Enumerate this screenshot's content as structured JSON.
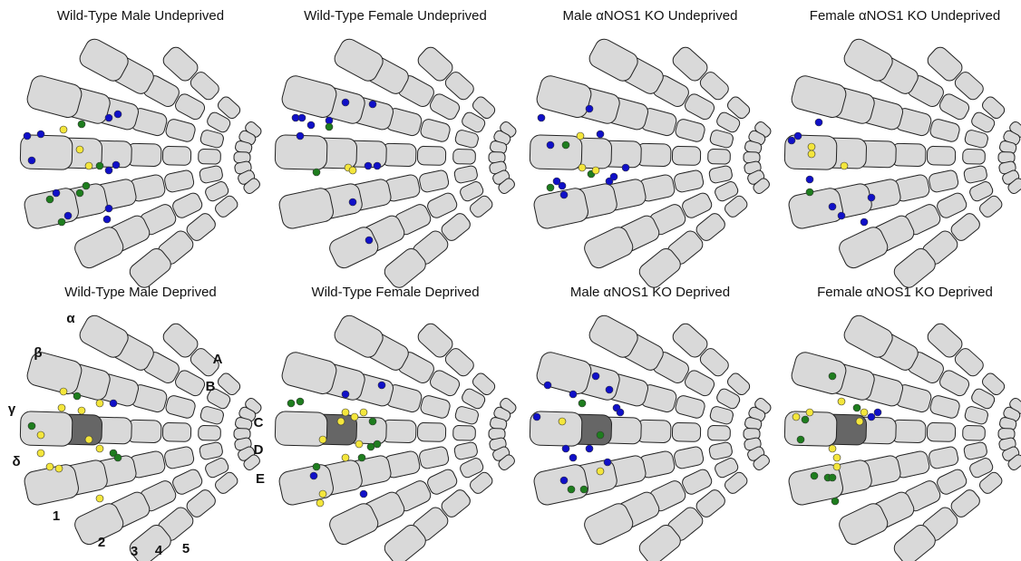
{
  "panels": [
    {
      "title": "Wild-Type Male Undeprived"
    },
    {
      "title": "Wild-Type Female Undeprived"
    },
    {
      "title": "Male αNOS1 KO Undeprived"
    },
    {
      "title": "Female αNOS1 KO Undeprived"
    },
    {
      "title": "Wild-Type Male Deprived"
    },
    {
      "title": "Wild-Type Female Deprived"
    },
    {
      "title": "Male αNOS1 KO Deprived"
    },
    {
      "title": "Female αNOS1 KO Deprived"
    }
  ],
  "labels": {
    "straddlers": [
      "α",
      "β",
      "γ",
      "δ"
    ],
    "rows": [
      "A",
      "B",
      "C",
      "D",
      "E"
    ],
    "arcs": [
      "1",
      "2",
      "3",
      "4",
      "5"
    ]
  }
}
